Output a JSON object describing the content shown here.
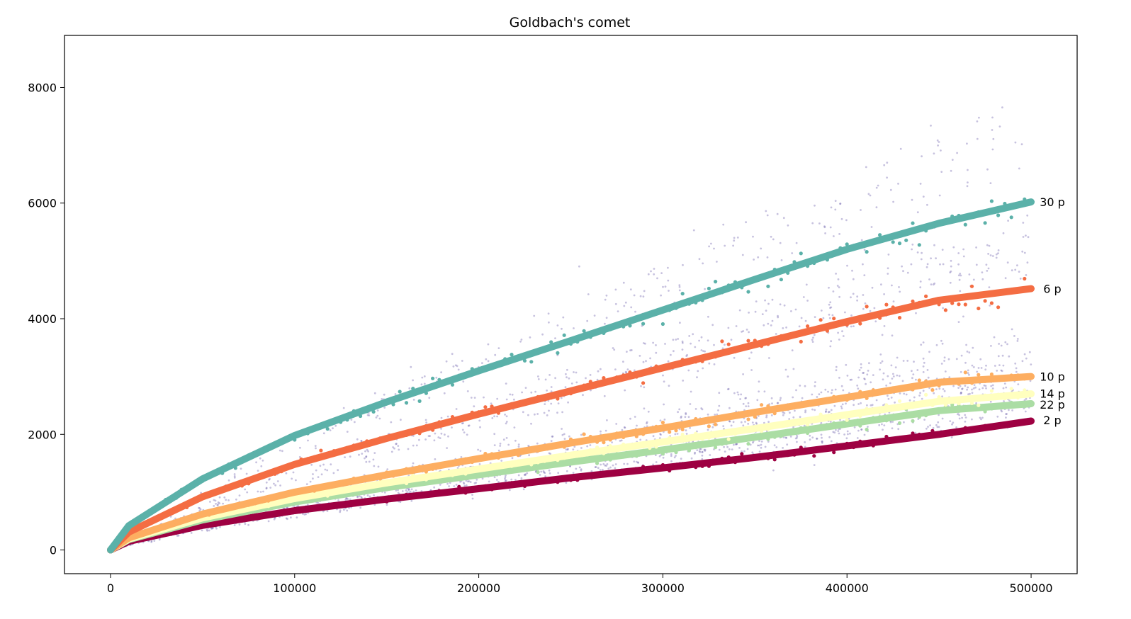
{
  "chart_data": {
    "type": "scatter",
    "title": "Goldbach's comet",
    "xlabel": "",
    "ylabel": "",
    "xlim": [
      -25000,
      525000
    ],
    "ylim": [
      -410,
      8900
    ],
    "xticks": [
      0,
      100000,
      200000,
      300000,
      400000,
      500000
    ],
    "xtick_labels": [
      "0",
      "100000",
      "200000",
      "300000",
      "400000",
      "500000"
    ],
    "yticks": [
      0,
      2000,
      4000,
      6000,
      8000
    ],
    "ytick_labels": [
      "0",
      "2000",
      "4000",
      "6000",
      "8000"
    ],
    "grid": false,
    "legend": "none",
    "background_color": "#5e4fa2",
    "background_curves": [
      {
        "factor": 1.1,
        "value_at_500000": 2450
      },
      {
        "factor": 1.2,
        "value_at_500000": 2600
      },
      {
        "factor": 1.27,
        "value_at_500000": 2830
      },
      {
        "factor": 1.33,
        "value_at_500000": 2980
      },
      {
        "factor": 1.45,
        "value_at_500000": 3250
      },
      {
        "factor": 1.6,
        "value_at_500000": 3600
      },
      {
        "factor": 2.2,
        "value_at_500000": 4900
      },
      {
        "factor": 2.4,
        "value_at_500000": 5400
      },
      {
        "factor": 3.2,
        "value_at_500000": 7200
      }
    ],
    "series": [
      {
        "label": "2 p",
        "color": "#9e0142",
        "x": [
          0,
          10000,
          50000,
          100000,
          150000,
          200000,
          250000,
          300000,
          350000,
          400000,
          450000,
          500000
        ],
        "y": [
          0,
          150,
          425,
          680,
          880,
          1060,
          1250,
          1420,
          1600,
          1800,
          2000,
          2230
        ]
      },
      {
        "label": "22 p",
        "color": "#abdda4",
        "x": [
          0,
          10000,
          50000,
          100000,
          150000,
          200000,
          250000,
          300000,
          350000,
          400000,
          450000,
          500000
        ],
        "y": [
          0,
          180,
          520,
          830,
          1080,
          1300,
          1520,
          1730,
          1950,
          2180,
          2410,
          2530
        ]
      },
      {
        "label": "14 p",
        "color": "#ffffbf",
        "x": [
          0,
          10000,
          50000,
          100000,
          150000,
          200000,
          250000,
          300000,
          350000,
          400000,
          450000,
          500000
        ],
        "y": [
          0,
          190,
          555,
          890,
          1160,
          1400,
          1640,
          1870,
          2100,
          2340,
          2570,
          2700
        ]
      },
      {
        "label": "10 p",
        "color": "#fdae61",
        "x": [
          0,
          10000,
          50000,
          100000,
          150000,
          200000,
          250000,
          300000,
          350000,
          400000,
          450000,
          500000
        ],
        "y": [
          0,
          210,
          620,
          1000,
          1300,
          1580,
          1850,
          2110,
          2380,
          2640,
          2900,
          3000
        ]
      },
      {
        "label": "6 p",
        "color": "#f46d43",
        "x": [
          0,
          10000,
          50000,
          100000,
          150000,
          200000,
          250000,
          300000,
          350000,
          400000,
          450000,
          500000
        ],
        "y": [
          0,
          310,
          920,
          1480,
          1930,
          2350,
          2750,
          3150,
          3550,
          3950,
          4320,
          4520
        ]
      },
      {
        "label": "30 p",
        "color": "#5bb1a9",
        "x": [
          0,
          10000,
          50000,
          100000,
          150000,
          200000,
          250000,
          300000,
          350000,
          400000,
          450000,
          500000
        ],
        "y": [
          0,
          420,
          1230,
          1980,
          2560,
          3100,
          3620,
          4150,
          4680,
          5200,
          5650,
          6020
        ]
      }
    ],
    "annotations": [
      "30 p",
      "6 p",
      "10 p",
      "14 p",
      "22 p",
      "2 p"
    ]
  }
}
